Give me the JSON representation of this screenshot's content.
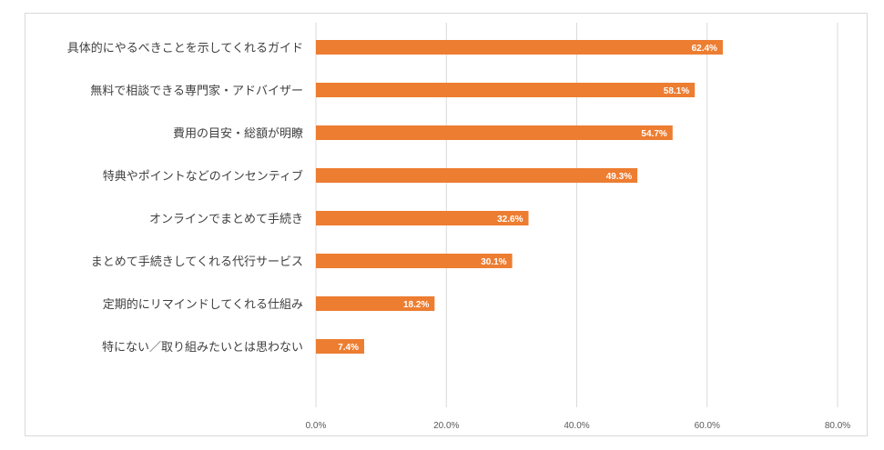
{
  "chart_data": {
    "type": "bar",
    "orientation": "horizontal",
    "title": "",
    "xlabel": "",
    "ylabel": "",
    "categories": [
      "具体的にやるべきことを示してくれるガイド",
      "無料で相談できる専門家・アドバイザー",
      "費用の目安・総額が明瞭",
      "特典やポイントなどのインセンティブ",
      "オンラインでまとめて手続き",
      "まとめて手続きしてくれる代行サービス",
      "定期的にリマインドしてくれる仕組み",
      "特にない／取り組みたいとは思わない"
    ],
    "values": [
      62.4,
      58.1,
      54.7,
      49.3,
      32.6,
      30.1,
      18.2,
      7.4
    ],
    "data_labels": [
      "62.4%",
      "58.1%",
      "54.7%",
      "49.3%",
      "32.6%",
      "30.1%",
      "18.2%",
      "7.4%"
    ],
    "xlim": [
      0,
      80
    ],
    "ticks": [
      0,
      20,
      40,
      60,
      80
    ],
    "tick_labels": [
      "0.0%",
      "20.0%",
      "40.0%",
      "60.0%",
      "80.0%"
    ],
    "grid": true,
    "legend": "none",
    "bar_color": "#ed7d31"
  }
}
